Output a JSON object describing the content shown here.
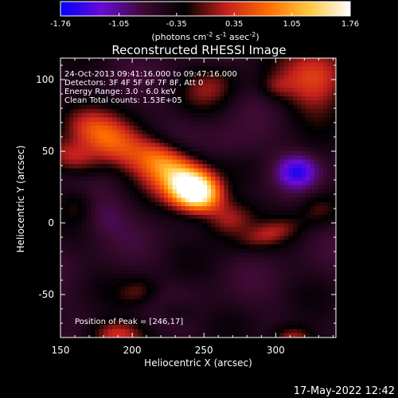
{
  "chart_data": {
    "type": "heatmap",
    "title": "Reconstructed RHESSI Image",
    "xlabel": "Heliocentric X (arcsec)",
    "ylabel": "Heliocentric Y (arcsec)",
    "xlim": [
      150,
      342
    ],
    "ylim": [
      -80,
      115
    ],
    "xticks": [
      150,
      200,
      250,
      300
    ],
    "yticks": [
      100,
      50,
      0,
      -50
    ],
    "colorbar": {
      "min": -1.76,
      "max": 1.76,
      "ticks": [
        "-1.76",
        "-1.05",
        "-0.35",
        "0.35",
        "1.05",
        "1.76"
      ],
      "units_prefix": "(photons cm",
      "units_sup1": "-2",
      "units_mid1": " s",
      "units_sup2": "-1",
      "units_mid2": " asec",
      "units_sup3": "-2",
      "units_suffix": ")",
      "colors": [
        "#0000ff",
        "#6a0bd6",
        "#3d0a33",
        "#000000",
        "#c4201e",
        "#ff6a00",
        "#ffc83c",
        "#ffffff"
      ]
    },
    "annotations": [
      "24-Oct-2013 09:41:16.000 to 09:47:16.000",
      "Detectors: 3F 4F 5F 6F 7F 8F, Att 0",
      "Energy Range: 3.0 - 6.0 keV",
      "Clean    Total counts: 1.53E+05"
    ],
    "peak_label": "Position of Peak = [246,17]",
    "peak": [
      246,
      17
    ],
    "background_level": -0.55,
    "sources": [
      {
        "x": 244,
        "y": 22,
        "sx": 12,
        "sy": 9,
        "amp": 2.35,
        "angle": -0.35
      },
      {
        "x": 232,
        "y": 32,
        "sx": 20,
        "sy": 12,
        "amp": 1.0,
        "angle": -0.5
      },
      {
        "x": 180,
        "y": 60,
        "sx": 24,
        "sy": 11,
        "amp": 1.15,
        "angle": -0.55
      },
      {
        "x": 222,
        "y": 44,
        "sx": 14,
        "sy": 9,
        "amp": 0.65,
        "angle": -0.5
      },
      {
        "x": 160,
        "y": 45,
        "sx": 14,
        "sy": 8,
        "amp": 0.75,
        "angle": -0.3
      },
      {
        "x": 268,
        "y": 2,
        "sx": 12,
        "sy": 9,
        "amp": 0.75,
        "angle": 0.2
      },
      {
        "x": 330,
        "y": 100,
        "sx": 18,
        "sy": 16,
        "amp": 1.05,
        "angle": 0.3
      },
      {
        "x": 300,
        "y": 95,
        "sx": 8,
        "sy": 6,
        "amp": 0.35,
        "angle": 0.0
      },
      {
        "x": 188,
        "y": -78,
        "sx": 14,
        "sy": 7,
        "amp": 0.9,
        "angle": 0.0
      },
      {
        "x": 312,
        "y": -82,
        "sx": 10,
        "sy": 7,
        "amp": 0.95,
        "angle": 0.0
      },
      {
        "x": 205,
        "y": -48,
        "sx": 10,
        "sy": 7,
        "amp": 0.45,
        "angle": 0.2
      },
      {
        "x": 295,
        "y": -8,
        "sx": 16,
        "sy": 6,
        "amp": 0.55,
        "angle": 0.3
      },
      {
        "x": 330,
        "y": 10,
        "sx": 10,
        "sy": 8,
        "amp": 0.45,
        "angle": 0.0
      },
      {
        "x": 230,
        "y": -62,
        "sx": 10,
        "sy": 6,
        "amp": 0.3,
        "angle": 0.0
      },
      {
        "x": 162,
        "y": 12,
        "sx": 8,
        "sy": 8,
        "amp": 0.3,
        "angle": 0.0
      },
      {
        "x": 255,
        "y": 95,
        "sx": 14,
        "sy": 10,
        "amp": 0.5,
        "angle": 0.4
      },
      {
        "x": 315,
        "y": 36,
        "sx": 10,
        "sy": 8,
        "amp": -0.85,
        "angle": 0.0
      },
      {
        "x": 180,
        "y": 5,
        "sx": 12,
        "sy": 10,
        "amp": -0.3,
        "angle": 0.0
      },
      {
        "x": 270,
        "y": 55,
        "sx": 14,
        "sy": 10,
        "amp": -0.25,
        "angle": 0.0
      }
    ]
  },
  "footer_timestamp": "17-May-2022 12:42"
}
